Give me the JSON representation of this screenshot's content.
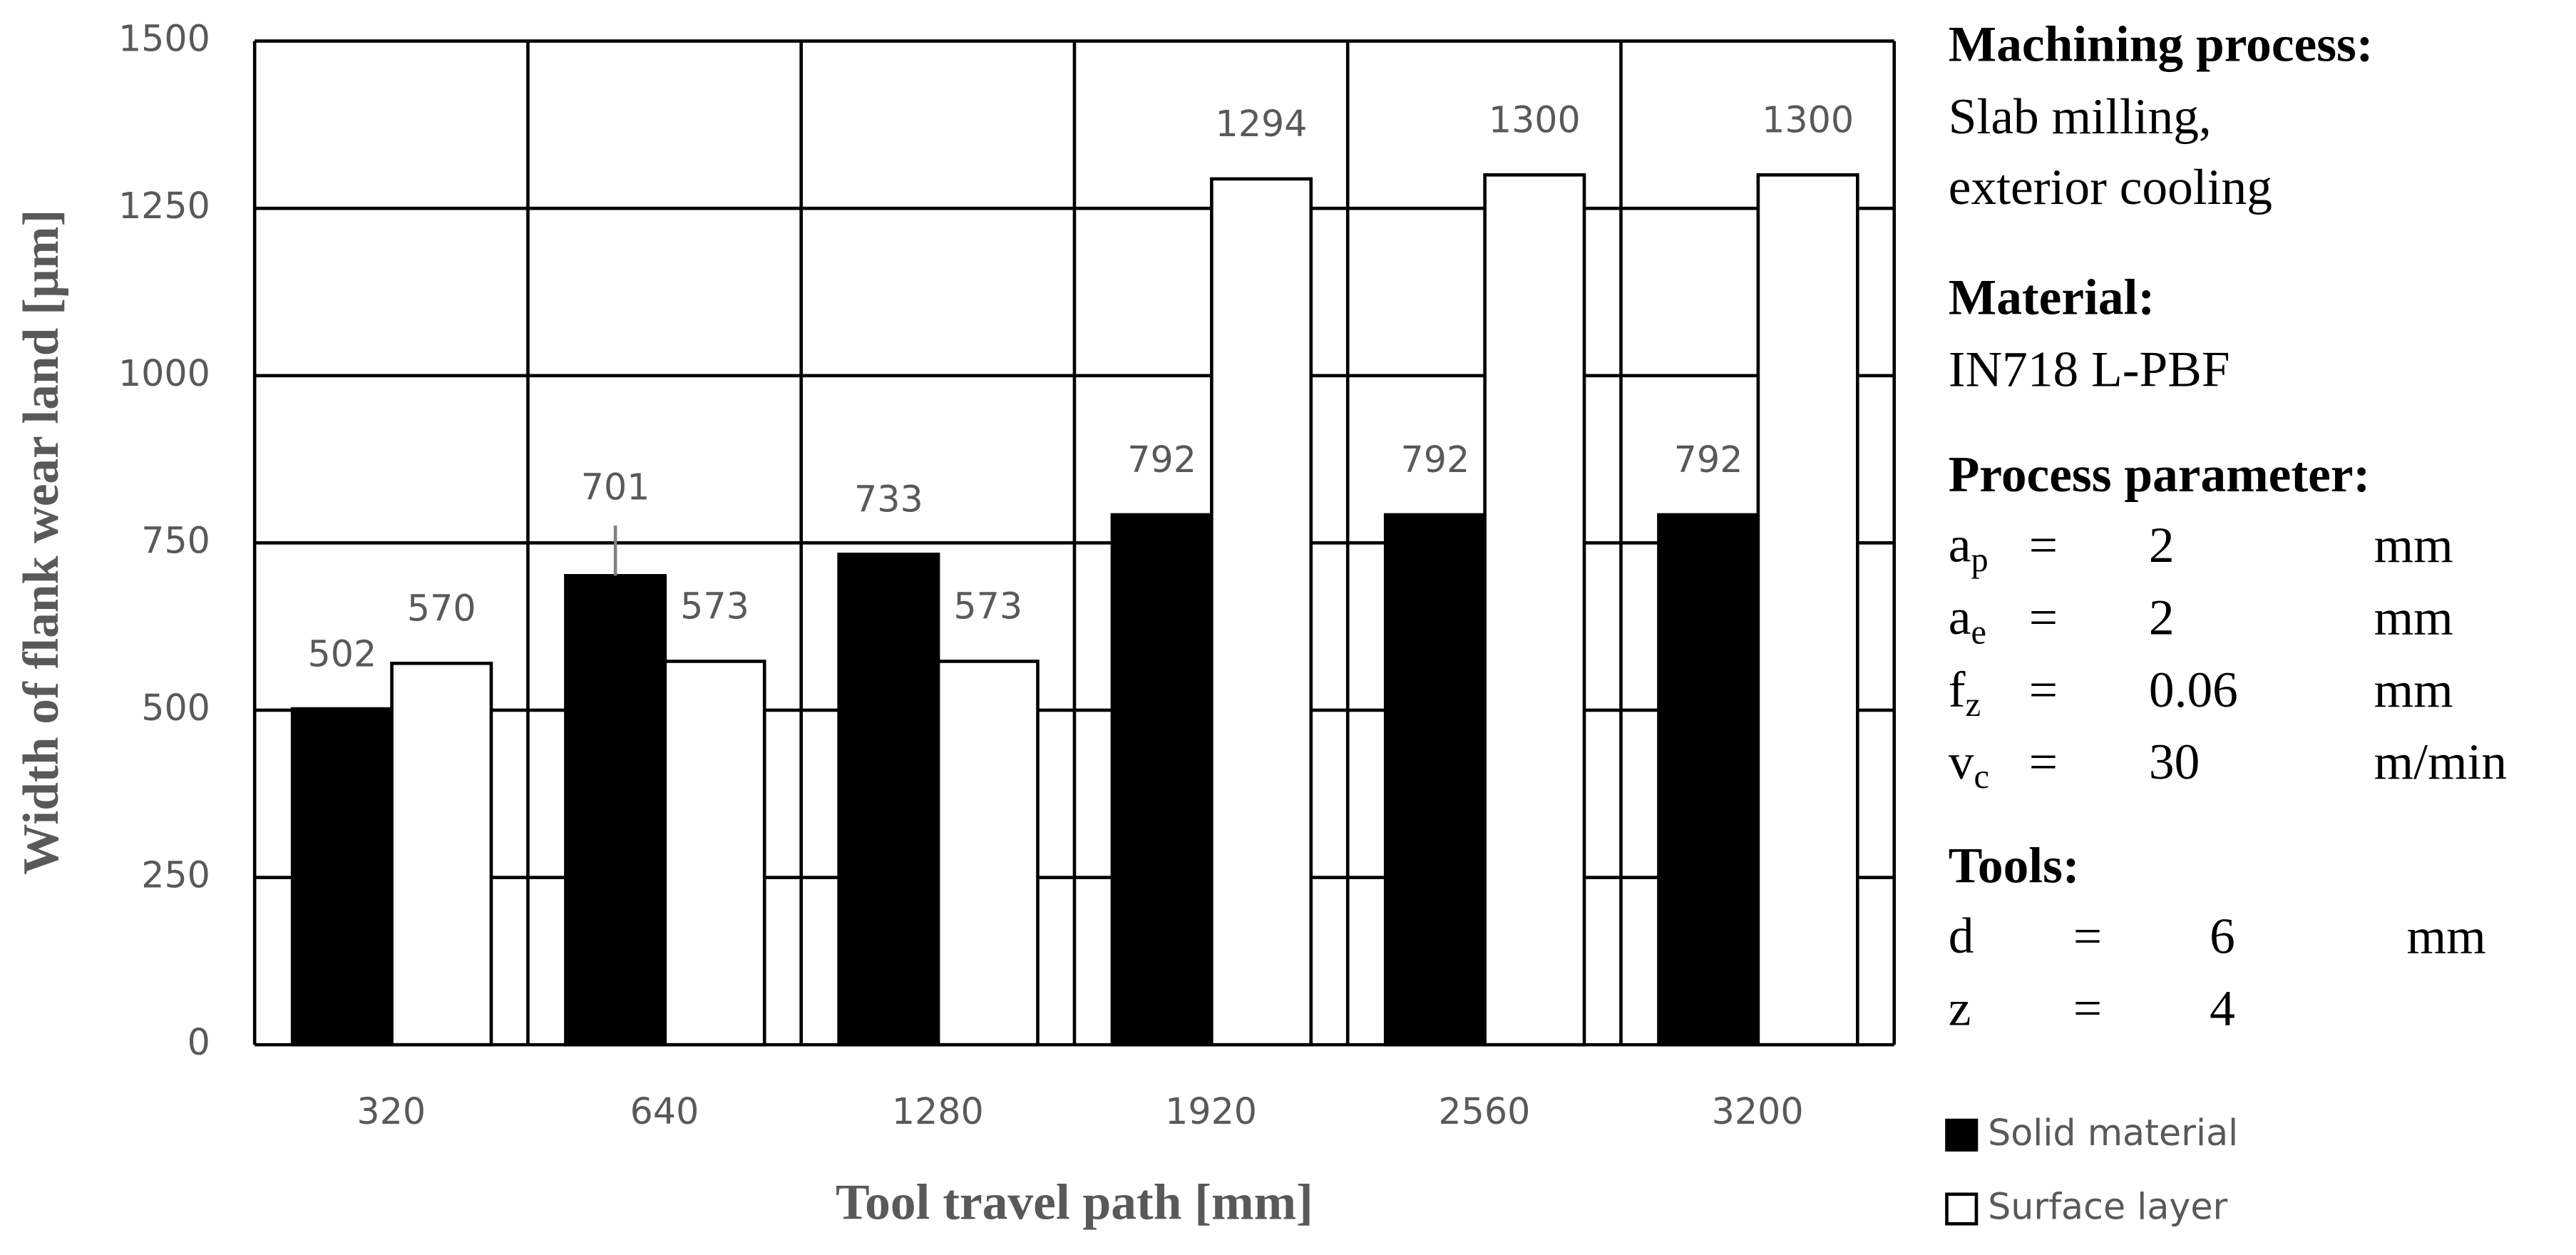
{
  "chart_data": {
    "type": "bar",
    "xlabel": "Tool travel path [mm]",
    "ylabel": "Width of flank wear land [µm]",
    "categories": [
      "320",
      "640",
      "1280",
      "1920",
      "2560",
      "3200"
    ],
    "series": [
      {
        "name": "Solid material",
        "color": "#000000",
        "values": [
          502,
          701,
          733,
          792,
          792,
          792
        ],
        "errors": [
          null,
          75,
          null,
          null,
          null,
          null
        ]
      },
      {
        "name": "Surface layer",
        "color": "#ffffff",
        "values": [
          570,
          573,
          573,
          1294,
          1300,
          1300
        ]
      }
    ],
    "ylim": [
      0,
      1500
    ],
    "yticks": [
      0,
      250,
      500,
      750,
      1000,
      1250,
      1500
    ],
    "grid": true,
    "legend": "bottom-right"
  },
  "panel": {
    "sections": [
      {
        "heading": "Machining process:",
        "lines": [
          "Slab milling,",
          "exterior cooling"
        ]
      },
      {
        "heading": "Material:",
        "lines": [
          "IN718 L-PBF"
        ]
      },
      {
        "heading": "Process parameter:",
        "rows": [
          {
            "symbol": "a",
            "sub": "p",
            "eq": "=",
            "value": "2",
            "unit": "mm"
          },
          {
            "symbol": "a",
            "sub": "e",
            "eq": "=",
            "value": "2",
            "unit": "mm"
          },
          {
            "symbol": "f",
            "sub": "z",
            "eq": "=",
            "value": "0.06",
            "unit": "mm"
          },
          {
            "symbol": "v",
            "sub": "c",
            "eq": "=",
            "value": "30",
            "unit": "m/min"
          }
        ]
      },
      {
        "heading": "Tools:",
        "rows": [
          {
            "symbol": "d",
            "eq": "=",
            "value": "6",
            "unit": "mm"
          },
          {
            "symbol": "z",
            "eq": "=",
            "value": "4"
          }
        ]
      }
    ]
  }
}
